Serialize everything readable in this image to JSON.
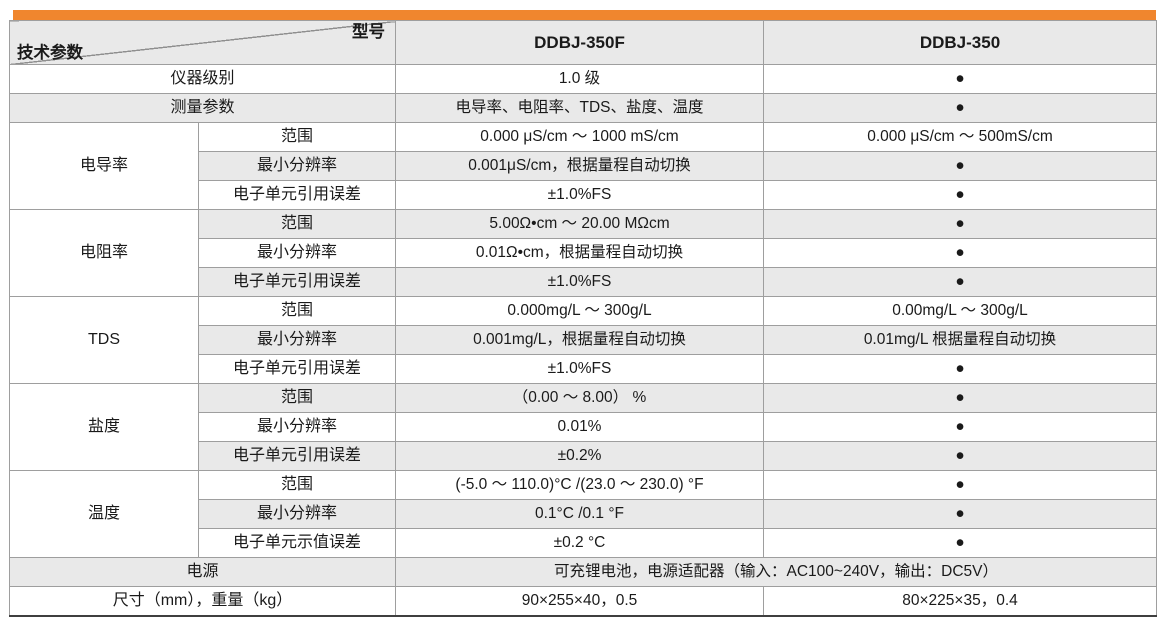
{
  "colors": {
    "accent_bar": "#F0862E",
    "stripe": "#E9E9E9",
    "border": "#9E9E9E",
    "text": "#1A1A1A"
  },
  "table": {
    "corner": {
      "top_right": "型号",
      "bottom_left": "技术参数"
    },
    "model_columns": [
      "DDBJ-350F",
      "DDBJ-350"
    ],
    "same_as_marker": "●",
    "rows": [
      {
        "label": "仪器级别",
        "f": "1.0 级",
        "s": "●"
      },
      {
        "label": "测量参数",
        "f": "电导率、电阻率、TDS、盐度、温度",
        "s": "●"
      },
      {
        "category": "电导率",
        "param": "范围",
        "f": "0.000 μS/cm ～ 1000 mS/cm",
        "s": "0.000 μS/cm ～ 500mS/cm"
      },
      {
        "param": "最小分辨率",
        "f": "0.001μS/cm，根据量程自动切换",
        "s": "●"
      },
      {
        "param": "电子单元引用误差",
        "f": "±1.0%FS",
        "s": "●"
      },
      {
        "category": "电阻率",
        "param": "范围",
        "f": "5.00Ω•cm ～ 20.00 MΩcm",
        "s": "●"
      },
      {
        "param": "最小分辨率",
        "f": "0.01Ω•cm，根据量程自动切换",
        "s": "●"
      },
      {
        "param": "电子单元引用误差",
        "f": "±1.0%FS",
        "s": "●"
      },
      {
        "category": "TDS",
        "param": "范围",
        "f": "0.000mg/L ～ 300g/L",
        "s": "0.00mg/L ～ 300g/L"
      },
      {
        "param": "最小分辨率",
        "f": "0.001mg/L，根据量程自动切换",
        "s": "0.01mg/L 根据量程自动切换"
      },
      {
        "param": "电子单元引用误差",
        "f": "±1.0%FS",
        "s": "●"
      },
      {
        "category": "盐度",
        "param": "范围",
        "f": "（0.00 ～ 8.00） %",
        "s": "●"
      },
      {
        "param": "最小分辨率",
        "f": "0.01%",
        "s": "●"
      },
      {
        "param": "电子单元引用误差",
        "f": "±0.2%",
        "s": "●"
      },
      {
        "category": "温度",
        "param": "范围",
        "f": "(-5.0 ～ 110.0)°C /(23.0 ～ 230.0) °F",
        "s": "●"
      },
      {
        "param": "最小分辨率",
        "f": "0.1°C /0.1 °F",
        "s": "●"
      },
      {
        "param": "电子单元示值误差",
        "f": "±0.2 °C",
        "s": "●"
      },
      {
        "label": "电源",
        "span": "可充锂电池，电源适配器（输入：AC100~240V，输出：DC5V）"
      },
      {
        "label": "尺寸（mm），重量（kg）",
        "f": "90×255×40，0.5",
        "s": "80×225×35，0.4"
      }
    ]
  }
}
